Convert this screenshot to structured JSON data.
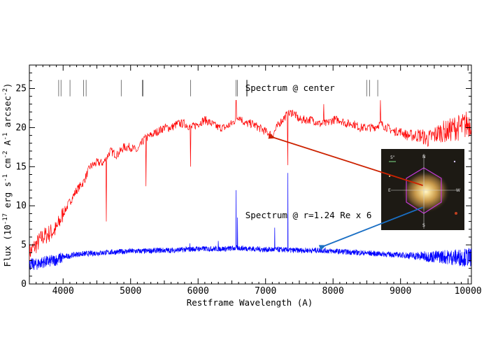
{
  "chart_data": {
    "type": "line",
    "title": "",
    "xlabel": "Restframe Wavelength (A)",
    "ylabel": "Flux (10",
    "ylabel_exp": "-17",
    "ylabel_mid1": " erg s",
    "ylabel_exp2": "-1",
    "ylabel_mid2": " cm",
    "ylabel_exp3": "-2",
    "ylabel_mid3": " A",
    "ylabel_exp4": "-1",
    "ylabel_mid4": " arcsec",
    "ylabel_exp5": "-2",
    "ylabel_end": ")",
    "xlim": [
      3500,
      10050
    ],
    "ylim": [
      0,
      28
    ],
    "xticks": [
      4000,
      5000,
      6000,
      7000,
      8000,
      9000,
      10000
    ],
    "xtick_labels": [
      "4000",
      "5000",
      "6000",
      "7000",
      "8000",
      "9000",
      "10000"
    ],
    "yticks": [
      0,
      5,
      10,
      15,
      20,
      25
    ],
    "ytick_labels": [
      "0",
      "5",
      "10",
      "15",
      "20",
      "25"
    ],
    "line_markers": [
      3934,
      3969,
      4102,
      4304,
      4341,
      4861,
      5175,
      5184,
      5890,
      6563,
      6583,
      6717,
      6731,
      8498,
      8542,
      8662
    ],
    "series": [
      {
        "color": "#ff0000",
        "x": [
          3500,
          3600,
          3700,
          3800,
          3900,
          4000,
          4100,
          4200,
          4300,
          4400,
          4500,
          4600,
          4700,
          4800,
          4900,
          5000,
          5100,
          5200,
          5300,
          5400,
          5500,
          5600,
          5700,
          5800,
          5900,
          6000,
          6100,
          6200,
          6300,
          6400,
          6500,
          6600,
          6700,
          6800,
          6900,
          7000,
          7100,
          7200,
          7300,
          7400,
          7500,
          7600,
          7700,
          7800,
          7900,
          8000,
          8100,
          8200,
          8300,
          8400,
          8500,
          8600,
          8700,
          8800,
          8900,
          9000,
          9100,
          9200,
          9300,
          9400,
          9500,
          9600,
          9700,
          9800,
          9900,
          10000,
          10050
        ],
        "values": [
          4,
          5,
          6,
          6.5,
          7,
          9,
          10.5,
          12,
          13,
          15,
          15.5,
          15.5,
          17,
          16.5,
          17.5,
          17.5,
          17,
          18.5,
          19,
          19.5,
          20,
          20,
          20.5,
          20.5,
          20,
          20.5,
          21,
          20.5,
          20,
          20,
          20.5,
          21.5,
          20.5,
          20.5,
          20,
          19.5,
          19,
          20.5,
          21.5,
          22,
          21,
          21,
          21,
          20.5,
          20.5,
          21,
          21,
          20.5,
          20.5,
          20,
          20,
          20,
          20.5,
          20,
          19.5,
          19.5,
          19,
          19,
          19,
          18.5,
          19,
          19.5,
          19.5,
          20,
          20,
          20.5,
          21
        ]
      },
      {
        "color": "#0000ff",
        "x": [
          3500,
          3600,
          3700,
          3800,
          3900,
          4000,
          4200,
          4400,
          4600,
          4800,
          5000,
          5200,
          5400,
          5600,
          5800,
          6000,
          6200,
          6400,
          6600,
          6800,
          7000,
          7200,
          7400,
          7600,
          7800,
          8000,
          8200,
          8400,
          8600,
          8800,
          9000,
          9200,
          9400,
          9600,
          9800,
          10000,
          10050
        ],
        "values": [
          2.5,
          2.5,
          2.8,
          2.9,
          3.1,
          3.4,
          3.8,
          3.9,
          4.0,
          4.1,
          4.2,
          4.2,
          4.3,
          4.3,
          4.4,
          4.5,
          4.5,
          4.5,
          4.6,
          4.5,
          4.4,
          4.4,
          4.3,
          4.3,
          4.3,
          4.2,
          4.1,
          4.0,
          3.9,
          3.8,
          3.7,
          3.6,
          3.5,
          3.5,
          3.4,
          3.4,
          3.5
        ]
      }
    ],
    "emission_lines": [
      {
        "x": 6563,
        "y": 12.0
      },
      {
        "x": 6583,
        "y": 8.5
      },
      {
        "x": 7330,
        "y": 14.2
      },
      {
        "x": 7135,
        "y": 7.2
      },
      {
        "x": 6300,
        "y": 5.5
      },
      {
        "x": 5880,
        "y": 5.2
      }
    ],
    "red_lines": [
      {
        "x": 4640,
        "y": 8.0
      },
      {
        "x": 5230,
        "y": 12.5
      },
      {
        "x": 5890,
        "y": 15.0
      },
      {
        "x": 6563,
        "y": 23.5
      },
      {
        "x": 7330,
        "y": 15.2
      },
      {
        "x": 7860,
        "y": 23.0
      },
      {
        "x": 8700,
        "y": 23.5
      }
    ],
    "annotations": [
      {
        "text": "Spectrum @ center",
        "x": 6700,
        "y": 24.7
      },
      {
        "text": "Spectrum @ r=1.24 Re x 6",
        "x": 6700,
        "y": 8.4
      }
    ],
    "arrows": [
      {
        "color": "#cc2200",
        "from": [
          9330,
          12.6
        ],
        "to": [
          7130,
          18.7
        ]
      },
      {
        "color": "#1a6fc4",
        "from": [
          9330,
          9.8
        ],
        "to": [
          7880,
          4.9
        ]
      }
    ],
    "inset": {
      "description": "galaxy image",
      "compass": {
        "n": "N",
        "s": "S",
        "e": "E",
        "w": "W"
      },
      "scale_label": "5\""
    }
  }
}
